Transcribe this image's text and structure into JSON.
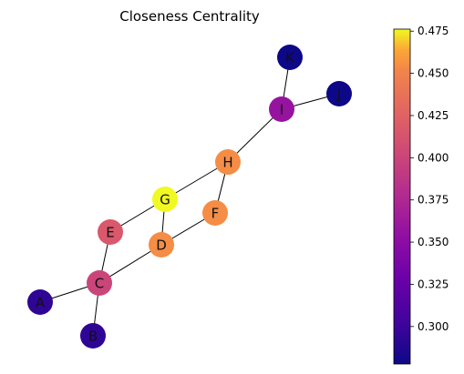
{
  "title": "Closeness Centrality",
  "colormap": "plasma",
  "colorbar": {
    "min": 0.2778,
    "max": 0.4762,
    "ticks": [
      "0.300",
      "0.325",
      "0.350",
      "0.375",
      "0.400",
      "0.425",
      "0.450",
      "0.475"
    ],
    "tick_values": [
      0.3,
      0.325,
      0.35,
      0.375,
      0.4,
      0.425,
      0.45,
      0.475
    ]
  },
  "nodes": [
    {
      "id": "K",
      "label": "K",
      "value": 0.2778
    },
    {
      "id": "J",
      "label": "J",
      "value": 0.2778
    },
    {
      "id": "I",
      "label": "I",
      "value": 0.3571
    },
    {
      "id": "H",
      "label": "H",
      "value": 0.4545
    },
    {
      "id": "G",
      "label": "G",
      "value": 0.4762
    },
    {
      "id": "F",
      "label": "F",
      "value": 0.4545
    },
    {
      "id": "E",
      "label": "E",
      "value": 0.4167
    },
    {
      "id": "D",
      "label": "D",
      "value": 0.4545
    },
    {
      "id": "C",
      "label": "C",
      "value": 0.4
    },
    {
      "id": "A",
      "label": "A",
      "value": 0.2941
    },
    {
      "id": "B",
      "label": "B",
      "value": 0.2941
    }
  ],
  "edges": [
    [
      "K",
      "I"
    ],
    [
      "J",
      "I"
    ],
    [
      "I",
      "H"
    ],
    [
      "H",
      "G"
    ],
    [
      "H",
      "F"
    ],
    [
      "G",
      "E"
    ],
    [
      "G",
      "D"
    ],
    [
      "F",
      "D"
    ],
    [
      "E",
      "C"
    ],
    [
      "D",
      "C"
    ],
    [
      "C",
      "A"
    ],
    [
      "C",
      "B"
    ]
  ]
}
